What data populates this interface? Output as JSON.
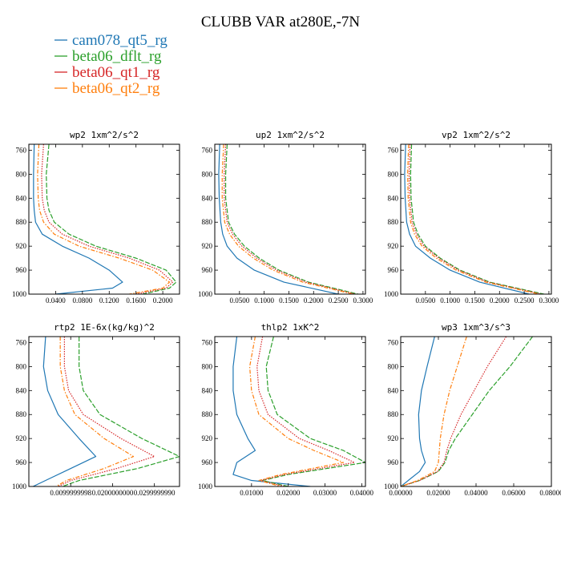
{
  "title": "CLUBB VAR at280E,-7N",
  "legend": [
    {
      "name": "cam078_qt5_rg",
      "color": "#1f77b4",
      "dash": "solid"
    },
    {
      "name": "beta06_dflt_rg",
      "color": "#2ca02c",
      "dash": "longdash"
    },
    {
      "name": "beta06_qt1_rg",
      "color": "#d62728",
      "dash": "dotted"
    },
    {
      "name": "beta06_qt2_rg",
      "color": "#ff7f0e",
      "dash": "dashdot"
    }
  ],
  "chart_data": [
    {
      "type": "line",
      "title": "wp2   1xm^2/s^2",
      "ylim": [
        1000,
        750
      ],
      "yticks": [
        "760",
        "800",
        "840",
        "880",
        "920",
        "960",
        "1000"
      ],
      "xlim": [
        0,
        0.225
      ],
      "xticks": [
        0.04,
        0.08,
        0.12,
        0.16,
        0.2
      ],
      "xtick_labels": [
        "0.0400",
        "0.0800",
        "0.1200",
        "0.1600",
        "0.2000"
      ],
      "y": [
        750,
        800,
        840,
        860,
        880,
        900,
        920,
        940,
        960,
        980,
        990,
        1000
      ],
      "series": [
        {
          "values": [
            0.008,
            0.007,
            0.007,
            0.008,
            0.01,
            0.02,
            0.05,
            0.09,
            0.12,
            0.14,
            0.125,
            0.04
          ]
        },
        {
          "values": [
            0.03,
            0.026,
            0.027,
            0.03,
            0.038,
            0.06,
            0.1,
            0.16,
            0.205,
            0.22,
            0.21,
            0.17
          ]
        },
        {
          "values": [
            0.022,
            0.019,
            0.02,
            0.023,
            0.03,
            0.05,
            0.09,
            0.15,
            0.195,
            0.215,
            0.205,
            0.16
          ]
        },
        {
          "values": [
            0.015,
            0.013,
            0.014,
            0.016,
            0.022,
            0.038,
            0.075,
            0.135,
            0.185,
            0.21,
            0.2,
            0.15
          ]
        }
      ]
    },
    {
      "type": "line",
      "title": "up2   1xm^2/s^2",
      "ylim": [
        1000,
        750
      ],
      "yticks": [
        "760",
        "800",
        "840",
        "880",
        "920",
        "960",
        "1000"
      ],
      "xlim": [
        0,
        0.305
      ],
      "xticks": [
        0.05,
        0.1,
        0.15,
        0.2,
        0.25,
        0.3
      ],
      "xtick_labels": [
        "0.0500",
        "0.1000",
        "0.1500",
        "0.2000",
        "0.2500",
        "0.3000"
      ],
      "y": [
        750,
        800,
        840,
        880,
        900,
        920,
        940,
        960,
        980,
        1000
      ],
      "series": [
        {
          "values": [
            0.01,
            0.008,
            0.009,
            0.012,
            0.016,
            0.025,
            0.045,
            0.08,
            0.14,
            0.25
          ]
        },
        {
          "values": [
            0.025,
            0.022,
            0.022,
            0.028,
            0.04,
            0.06,
            0.09,
            0.13,
            0.19,
            0.29
          ]
        },
        {
          "values": [
            0.022,
            0.019,
            0.019,
            0.025,
            0.036,
            0.055,
            0.085,
            0.125,
            0.185,
            0.285
          ]
        },
        {
          "values": [
            0.018,
            0.015,
            0.015,
            0.02,
            0.03,
            0.048,
            0.078,
            0.118,
            0.178,
            0.28
          ]
        }
      ]
    },
    {
      "type": "line",
      "title": "vp2   1xm^2/s^2",
      "ylim": [
        1000,
        750
      ],
      "yticks": [
        "760",
        "800",
        "840",
        "880",
        "920",
        "960",
        "1000"
      ],
      "xlim": [
        0,
        0.305
      ],
      "xticks": [
        0.05,
        0.1,
        0.15,
        0.2,
        0.25,
        0.3
      ],
      "xtick_labels": [
        "0.0500",
        "0.1000",
        "0.1500",
        "0.2000",
        "0.2500",
        "0.3000"
      ],
      "y": [
        750,
        800,
        840,
        880,
        900,
        920,
        940,
        960,
        980,
        1000
      ],
      "series": [
        {
          "values": [
            0.01,
            0.008,
            0.009,
            0.012,
            0.018,
            0.03,
            0.06,
            0.1,
            0.16,
            0.26
          ]
        },
        {
          "values": [
            0.022,
            0.02,
            0.021,
            0.026,
            0.035,
            0.05,
            0.08,
            0.12,
            0.18,
            0.29
          ]
        },
        {
          "values": [
            0.019,
            0.017,
            0.018,
            0.023,
            0.032,
            0.047,
            0.077,
            0.117,
            0.177,
            0.285
          ]
        },
        {
          "values": [
            0.016,
            0.014,
            0.015,
            0.02,
            0.028,
            0.043,
            0.072,
            0.112,
            0.172,
            0.28
          ]
        }
      ]
    },
    {
      "type": "line",
      "title": "rtp2   1E-6x(kg/kg)^2",
      "ylim": [
        1000,
        750
      ],
      "yticks": [
        "760",
        "800",
        "840",
        "880",
        "920",
        "960",
        "1000"
      ],
      "xlim": [
        0,
        0.036
      ],
      "xticks": [
        0.01,
        0.02,
        0.03
      ],
      "xtick_labels": [
        "0.0099999998",
        "0.0200000000",
        "0.0299999990"
      ],
      "y": [
        750,
        800,
        840,
        880,
        920,
        950,
        970,
        990,
        1000
      ],
      "series": [
        {
          "values": [
            0.004,
            0.0035,
            0.0045,
            0.007,
            0.012,
            0.016,
            0.01,
            0.004,
            0.001
          ]
        },
        {
          "values": [
            0.012,
            0.012,
            0.013,
            0.017,
            0.027,
            0.036,
            0.026,
            0.012,
            0.008
          ]
        },
        {
          "values": [
            0.0085,
            0.0085,
            0.0095,
            0.013,
            0.022,
            0.03,
            0.021,
            0.01,
            0.007
          ]
        },
        {
          "values": [
            0.0075,
            0.0075,
            0.0085,
            0.011,
            0.018,
            0.025,
            0.018,
            0.009,
            0.0065
          ]
        }
      ]
    },
    {
      "type": "line",
      "title": "thlp2   1xK^2",
      "ylim": [
        1000,
        750
      ],
      "yticks": [
        "760",
        "800",
        "840",
        "880",
        "920",
        "960",
        "1000"
      ],
      "xlim": [
        0,
        0.041
      ],
      "xticks": [
        0.01,
        0.02,
        0.03,
        0.04
      ],
      "xtick_labels": [
        "0.01000",
        "0.02000",
        "0.03000",
        "0.04000"
      ],
      "y": [
        750,
        800,
        840,
        880,
        920,
        940,
        960,
        980,
        990,
        1000
      ],
      "series": [
        {
          "values": [
            0.006,
            0.005,
            0.005,
            0.006,
            0.009,
            0.011,
            0.006,
            0.005,
            0.01,
            0.026
          ]
        },
        {
          "values": [
            0.016,
            0.014,
            0.0145,
            0.017,
            0.026,
            0.035,
            0.041,
            0.02,
            0.013,
            0.02
          ]
        },
        {
          "values": [
            0.013,
            0.0115,
            0.012,
            0.0145,
            0.023,
            0.031,
            0.038,
            0.019,
            0.0125,
            0.019
          ]
        },
        {
          "values": [
            0.011,
            0.0095,
            0.01,
            0.012,
            0.02,
            0.027,
            0.035,
            0.018,
            0.012,
            0.018
          ]
        }
      ]
    },
    {
      "type": "line",
      "title": "wp3   1xm^3/s^3",
      "ylim": [
        1000,
        750
      ],
      "yticks": [
        "760",
        "800",
        "840",
        "880",
        "920",
        "960",
        "1000"
      ],
      "xlim": [
        0,
        0.08
      ],
      "xticks": [
        0,
        0.02,
        0.04,
        0.06,
        0.08
      ],
      "xtick_labels": [
        "0.00000",
        "0.02000",
        "0.04000",
        "0.06000",
        "0.08000"
      ],
      "y": [
        750,
        800,
        840,
        880,
        920,
        940,
        960,
        975,
        990,
        1000
      ],
      "series": [
        {
          "values": [
            0.018,
            0.014,
            0.011,
            0.0095,
            0.01,
            0.011,
            0.013,
            0.01,
            0.004,
            0.0
          ]
        },
        {
          "values": [
            0.07,
            0.058,
            0.047,
            0.038,
            0.029,
            0.0255,
            0.0235,
            0.02,
            0.01,
            0.0
          ]
        },
        {
          "values": [
            0.056,
            0.046,
            0.039,
            0.032,
            0.0265,
            0.0245,
            0.023,
            0.0195,
            0.01,
            0.0
          ]
        },
        {
          "values": [
            0.035,
            0.03,
            0.026,
            0.023,
            0.021,
            0.0205,
            0.02,
            0.018,
            0.009,
            0.0
          ]
        }
      ]
    }
  ]
}
